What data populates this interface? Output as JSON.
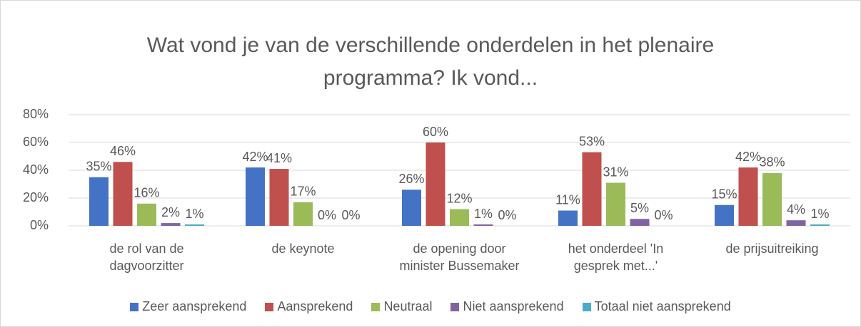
{
  "chart_data": {
    "type": "bar",
    "title": "Wat vond je van de verschillende onderdelen in het plenaire programma? Ik vond...",
    "categories": [
      "de rol van de dagvoorzitter",
      "de keynote",
      "de opening door minister Bussemaker",
      "het onderdeel 'In gesprek met...'",
      "de prijsuitreiking"
    ],
    "series": [
      {
        "name": "Zeer aansprekend",
        "color": "#4472c4",
        "values": [
          35,
          42,
          26,
          11,
          15
        ],
        "value_labels": [
          "35%",
          "42%",
          "26%",
          "11%",
          "15%"
        ]
      },
      {
        "name": "Aansprekend",
        "color": "#c0504d",
        "values": [
          46,
          41,
          60,
          53,
          42
        ],
        "value_labels": [
          "46%",
          "41%",
          "60%",
          "53%",
          "42%"
        ]
      },
      {
        "name": "Neutraal",
        "color": "#9bbb59",
        "values": [
          16,
          17,
          12,
          31,
          38
        ],
        "value_labels": [
          "16%",
          "17%",
          "12%",
          "31%",
          "38%"
        ]
      },
      {
        "name": "Niet aansprekend",
        "color": "#8064a2",
        "values": [
          2,
          0,
          1,
          5,
          4
        ],
        "value_labels": [
          "2%",
          "0%",
          "1%",
          "5%",
          "4%"
        ]
      },
      {
        "name": "Totaal niet aansprekend",
        "color": "#4bacc6",
        "values": [
          1,
          0,
          0,
          0,
          1
        ],
        "value_labels": [
          "1%",
          "0%",
          "0%",
          "0%",
          "1%"
        ]
      }
    ],
    "ylim": [
      0,
      80
    ],
    "yticks": [
      {
        "value": 0,
        "label": "0%"
      },
      {
        "value": 20,
        "label": "20%"
      },
      {
        "value": 40,
        "label": "40%"
      },
      {
        "value": 60,
        "label": "60%"
      },
      {
        "value": 80,
        "label": "80%"
      }
    ],
    "grid": true,
    "legend": "bottom"
  }
}
